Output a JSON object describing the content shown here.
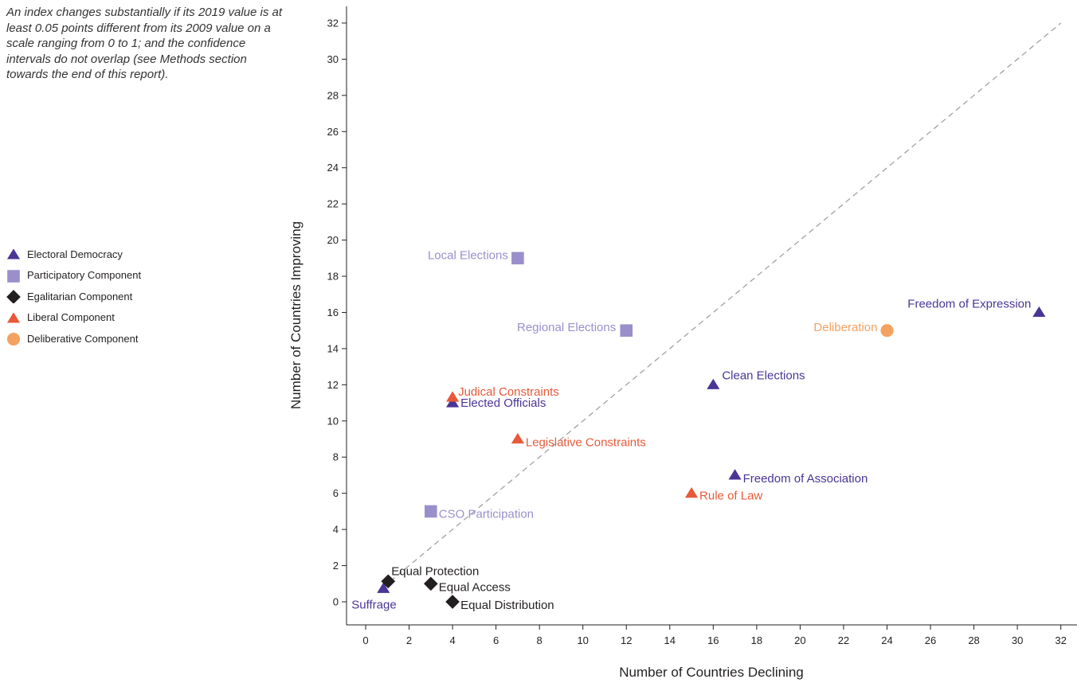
{
  "note": "An index changes substantially if its 2019 value is at least 0.05 points different from its 2009 value on a scale ranging from 0 to 1; and the confidence intervals do not overlap (see Methods section towards the end of this report).",
  "colors": {
    "electoral": "#4a3597",
    "participatory": "#9b8fcb",
    "egalitarian": "#231f20",
    "liberal": "#e8593a",
    "deliberative": "#f4a261",
    "reference_line": "#9a9a9a"
  },
  "legend": [
    {
      "label": "Electoral Democracy",
      "shape": "triangle",
      "color": "#4a3597"
    },
    {
      "label": "Participatory Component",
      "shape": "square",
      "color": "#9b8fcb"
    },
    {
      "label": "Egalitarian Component",
      "shape": "diamond",
      "color": "#231f20"
    },
    {
      "label": "Liberal Component",
      "shape": "triangle",
      "color": "#e8593a"
    },
    {
      "label": "Deliberative Component",
      "shape": "circle",
      "color": "#f4a261"
    }
  ],
  "chart_data": {
    "type": "scatter",
    "title": "",
    "xlabel": "Number of Countries Declining",
    "ylabel": "Number of Countries Improving",
    "xlim": [
      -1,
      33
    ],
    "ylim": [
      -1.5,
      33
    ],
    "xticks": [
      0,
      2,
      4,
      6,
      8,
      10,
      12,
      14,
      16,
      18,
      20,
      22,
      24,
      26,
      28,
      30,
      32
    ],
    "yticks": [
      0,
      2,
      4,
      6,
      8,
      10,
      12,
      14,
      16,
      18,
      20,
      22,
      24,
      26,
      28,
      30,
      32
    ],
    "reference_line": "y = x (dashed)",
    "grid": false,
    "legend_position": "left",
    "series": [
      {
        "name": "Electoral Democracy",
        "shape": "triangle",
        "color": "#4a3597",
        "points": [
          {
            "label": "Freedom of Expression",
            "x": 31,
            "y": 16
          },
          {
            "label": "Clean Elections",
            "x": 16,
            "y": 12
          },
          {
            "label": "Elected Officials",
            "x": 4,
            "y": 11
          },
          {
            "label": "Freedom of Association",
            "x": 17,
            "y": 7
          },
          {
            "label": "Suffrage",
            "x": 1,
            "y": 1
          }
        ]
      },
      {
        "name": "Participatory Component",
        "shape": "square",
        "color": "#9b8fcb",
        "points": [
          {
            "label": "Local Elections",
            "x": 7,
            "y": 19
          },
          {
            "label": "Regional Elections",
            "x": 12,
            "y": 15
          },
          {
            "label": "CSO Participation",
            "x": 3,
            "y": 5
          }
        ]
      },
      {
        "name": "Egalitarian Component",
        "shape": "diamond",
        "color": "#231f20",
        "points": [
          {
            "label": "Equal Protection",
            "x": 1,
            "y": 1
          },
          {
            "label": "Equal Access",
            "x": 3,
            "y": 1
          },
          {
            "label": "Equal Distribution",
            "x": 4,
            "y": 0
          }
        ]
      },
      {
        "name": "Liberal Component",
        "shape": "triangle",
        "color": "#e8593a",
        "points": [
          {
            "label": "Judical Constraints",
            "x": 4,
            "y": 11
          },
          {
            "label": "Legislative Constraints",
            "x": 7,
            "y": 9
          },
          {
            "label": "Rule of Law",
            "x": 15,
            "y": 6
          }
        ]
      },
      {
        "name": "Deliberative Component",
        "shape": "circle",
        "color": "#f4a261",
        "points": [
          {
            "label": "Deliberation",
            "x": 24,
            "y": 15
          }
        ]
      }
    ]
  }
}
